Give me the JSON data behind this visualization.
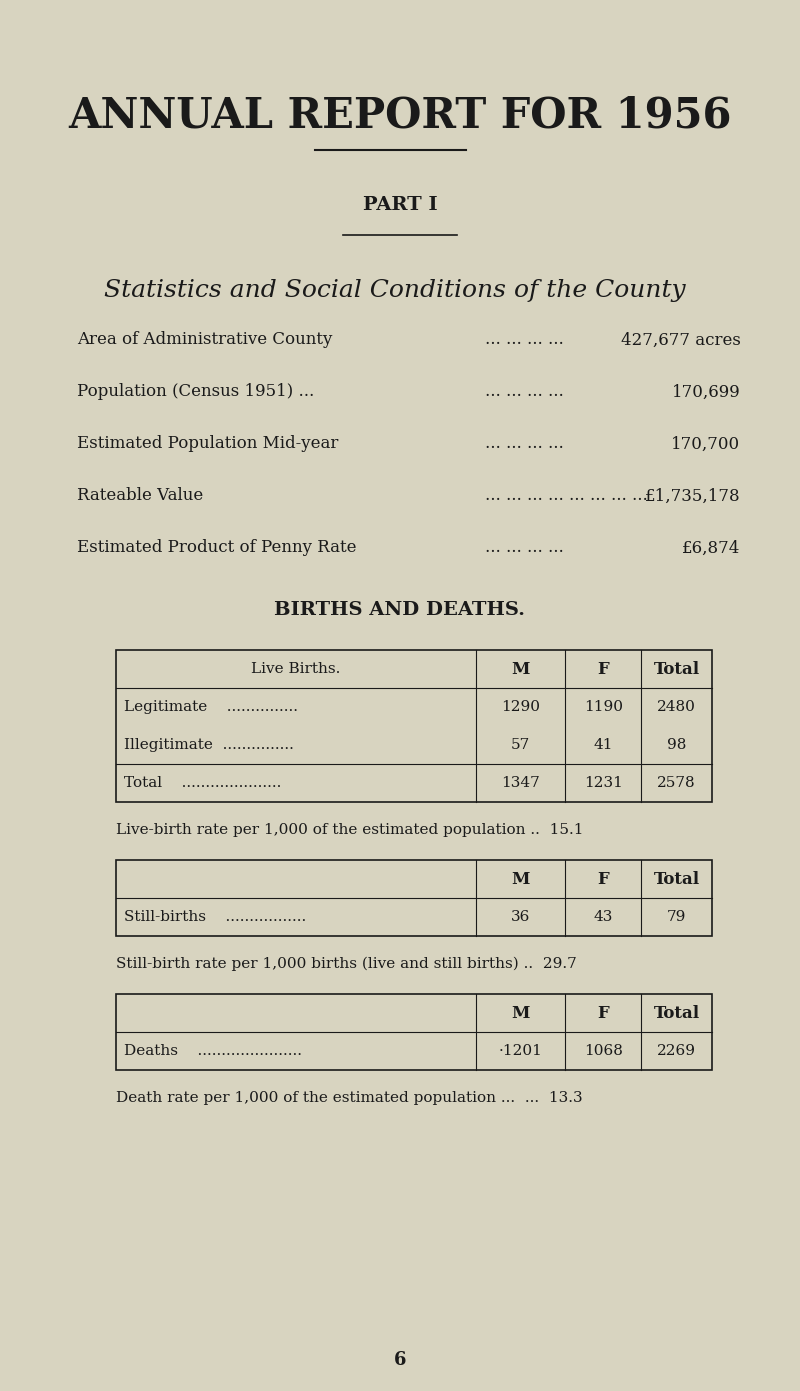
{
  "bg_color": "#d8d4c0",
  "title": "ANNUAL REPORT FOR 1956",
  "part": "PART I",
  "subtitle": "Statistics and Social Conditions of the County",
  "stats": [
    {
      "label": "Area of Administrative County",
      "dots": "... ... ... ...",
      "value": "427,677 acres"
    },
    {
      "label": "Population (Census 1951) ...",
      "dots": "... ... ... ...",
      "value": "170,699"
    },
    {
      "label": "Estimated Population Mid-year",
      "dots": "... ... ... ...",
      "value": "170,700"
    },
    {
      "label": "Rateable Value",
      "dots": "... ... ... ... ... ... ... ...",
      "value": "£1,735,178"
    },
    {
      "label": "Estimated Product of Penny Rate",
      "dots": "... ... ... ...",
      "value": "£6,874"
    }
  ],
  "births_deaths_title": "BIRTHS AND DEATHS.",
  "table1_header": [
    "Live Births.",
    "M",
    "F",
    "Total"
  ],
  "table1_rows": [
    [
      "Legitimate    ...............",
      "1290",
      "1190",
      "2480"
    ],
    [
      "Illegitimate  ...............",
      "57",
      "41",
      "98"
    ],
    [
      "Total    .....................",
      "1347",
      "1231",
      "2578"
    ]
  ],
  "live_birth_rate_text": "Live-birth rate per 1,000 of the estimated population ..  15.1",
  "table2_header": [
    "",
    "M",
    "F",
    "Total"
  ],
  "table2_rows": [
    [
      "Still-births    .................",
      "36",
      "43",
      "79"
    ]
  ],
  "still_birth_rate_text": "Still-birth rate per 1,000 births (live and still births) ..  29.7",
  "table3_header": [
    "",
    "M",
    "F",
    "Total"
  ],
  "table3_rows": [
    [
      "Deaths    ......................",
      "1201",
      "1068",
      "2269"
    ]
  ],
  "death_rate_text": "Death rate per 1,000 of the estimated population ...  ...  13.3",
  "page_number": "6",
  "text_color": "#1a1a1a",
  "line_color": "#1a1a1a",
  "table_border_color": "#1a1a1a"
}
